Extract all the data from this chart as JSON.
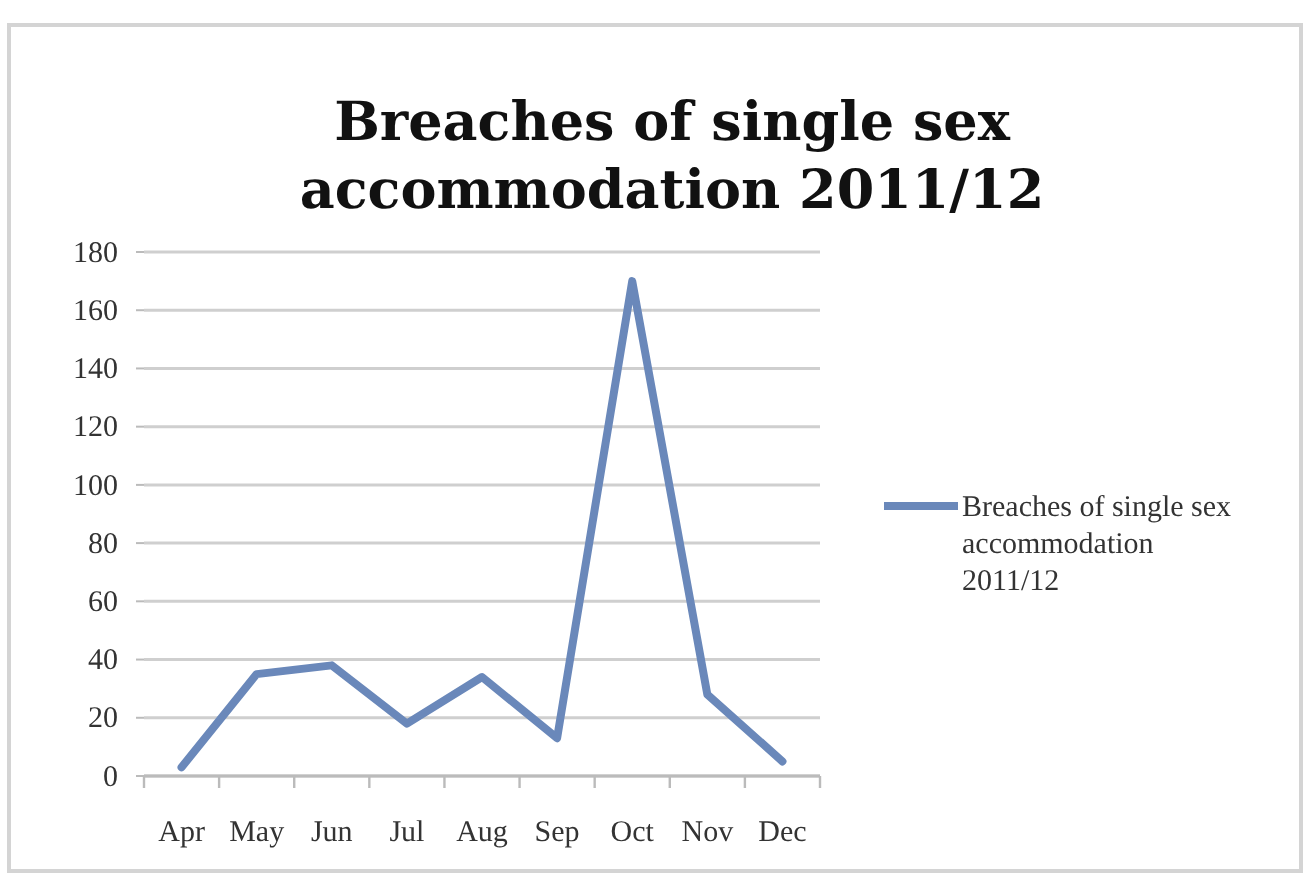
{
  "chart_data": {
    "type": "line",
    "title": "Breaches of single sex accommodation 2011/12",
    "categories": [
      "Apr",
      "May",
      "Jun",
      "Jul",
      "Aug",
      "Sep",
      "Oct",
      "Nov",
      "Dec"
    ],
    "series": [
      {
        "name": "Breaches of single sex accommodation 2011/12",
        "color": "#6a88ba",
        "values": [
          3,
          35,
          38,
          18,
          34,
          13,
          170,
          28,
          5
        ]
      }
    ],
    "ylim": [
      0,
      180
    ],
    "yticks": [
      0,
      20,
      40,
      60,
      80,
      100,
      120,
      140,
      160,
      180
    ],
    "grid": "y",
    "legend": "right",
    "marker": "none",
    "line_style": "solid"
  }
}
